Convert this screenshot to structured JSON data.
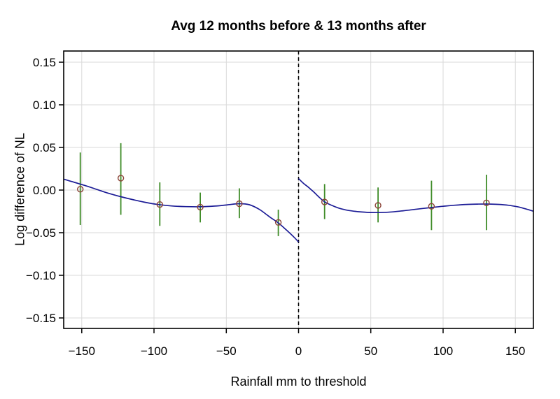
{
  "chart_data": {
    "type": "scatter",
    "title": "Avg 12 months before & 13 months after",
    "xlabel": "Rainfall mm to threshold",
    "ylabel": "Log difference of NL",
    "xlim": [
      -162.5,
      162.5
    ],
    "ylim": [
      -0.1623,
      0.1631
    ],
    "grid": true,
    "x_ticks": [
      {
        "v": -150,
        "label": "−150"
      },
      {
        "v": -100,
        "label": "−100"
      },
      {
        "v": -50,
        "label": "−50"
      },
      {
        "v": 0,
        "label": "0"
      },
      {
        "v": 50,
        "label": "50"
      },
      {
        "v": 100,
        "label": "100"
      },
      {
        "v": 150,
        "label": "150"
      }
    ],
    "y_ticks": [
      {
        "v": 0.15,
        "label": "0.15"
      },
      {
        "v": 0.1,
        "label": "0.10"
      },
      {
        "v": 0.05,
        "label": "0.05"
      },
      {
        "v": 0.0,
        "label": "0.00"
      },
      {
        "v": -0.05,
        "label": "−0.05"
      },
      {
        "v": -0.1,
        "label": "−0.10"
      },
      {
        "v": -0.15,
        "label": "−0.15"
      }
    ],
    "threshold_line": {
      "x": 0,
      "style": "dashed"
    },
    "points": [
      {
        "x": -151,
        "y": 0.001,
        "ci_low": -0.041,
        "ci_high": 0.044
      },
      {
        "x": -123,
        "y": 0.014,
        "ci_low": -0.029,
        "ci_high": 0.055
      },
      {
        "x": -96,
        "y": -0.017,
        "ci_low": -0.042,
        "ci_high": 0.009
      },
      {
        "x": -68,
        "y": -0.02,
        "ci_low": -0.038,
        "ci_high": -0.003
      },
      {
        "x": -41,
        "y": -0.016,
        "ci_low": -0.033,
        "ci_high": 0.002
      },
      {
        "x": -14,
        "y": -0.038,
        "ci_low": -0.054,
        "ci_high": -0.023
      },
      {
        "x": 18,
        "y": -0.014,
        "ci_low": -0.034,
        "ci_high": 0.007
      },
      {
        "x": 55,
        "y": -0.018,
        "ci_low": -0.038,
        "ci_high": 0.003
      },
      {
        "x": 92,
        "y": -0.019,
        "ci_low": -0.047,
        "ci_high": 0.011
      },
      {
        "x": 130,
        "y": -0.015,
        "ci_low": -0.047,
        "ci_high": 0.018
      }
    ],
    "fit_lines": [
      {
        "name": "before-threshold",
        "points": [
          [
            -162.5,
            0.0128
          ],
          [
            -155,
            0.009
          ],
          [
            -148,
            0.0055
          ],
          [
            -140,
            0.001
          ],
          [
            -132,
            -0.0035
          ],
          [
            -123,
            -0.0078
          ],
          [
            -114,
            -0.0115
          ],
          [
            -105,
            -0.0148
          ],
          [
            -97,
            -0.017
          ],
          [
            -88,
            -0.0186
          ],
          [
            -78,
            -0.0194
          ],
          [
            -68,
            -0.0196
          ],
          [
            -58,
            -0.0188
          ],
          [
            -49,
            -0.0173
          ],
          [
            -41,
            -0.016
          ],
          [
            -34,
            -0.0172
          ],
          [
            -27,
            -0.0228
          ],
          [
            -20,
            -0.0315
          ],
          [
            -14,
            -0.0385
          ],
          [
            -8,
            -0.0475
          ],
          [
            -3,
            -0.0555
          ],
          [
            0,
            -0.061
          ]
        ]
      },
      {
        "name": "after-threshold",
        "points": [
          [
            0,
            0.0135
          ],
          [
            3,
            0.0085
          ],
          [
            7,
            0.003
          ],
          [
            11,
            -0.003
          ],
          [
            14,
            -0.008
          ],
          [
            18,
            -0.0138
          ],
          [
            23,
            -0.018
          ],
          [
            28,
            -0.0212
          ],
          [
            34,
            -0.0237
          ],
          [
            41,
            -0.0253
          ],
          [
            48,
            -0.0262
          ],
          [
            55,
            -0.0264
          ],
          [
            62,
            -0.026
          ],
          [
            70,
            -0.0248
          ],
          [
            78,
            -0.0232
          ],
          [
            86,
            -0.0216
          ],
          [
            92,
            -0.0205
          ],
          [
            100,
            -0.019
          ],
          [
            108,
            -0.0178
          ],
          [
            116,
            -0.0169
          ],
          [
            124,
            -0.0165
          ],
          [
            131,
            -0.0164
          ],
          [
            138,
            -0.0168
          ],
          [
            145,
            -0.0178
          ],
          [
            152,
            -0.0198
          ],
          [
            157,
            -0.022
          ],
          [
            162.5,
            -0.0248
          ]
        ]
      }
    ],
    "colors": {
      "point": "#8b4236",
      "error_bar": "#3f8c28",
      "fit_line": "#1c1c96",
      "grid": "#d9d9d9",
      "frame": "#000000",
      "threshold": "#000000"
    }
  }
}
